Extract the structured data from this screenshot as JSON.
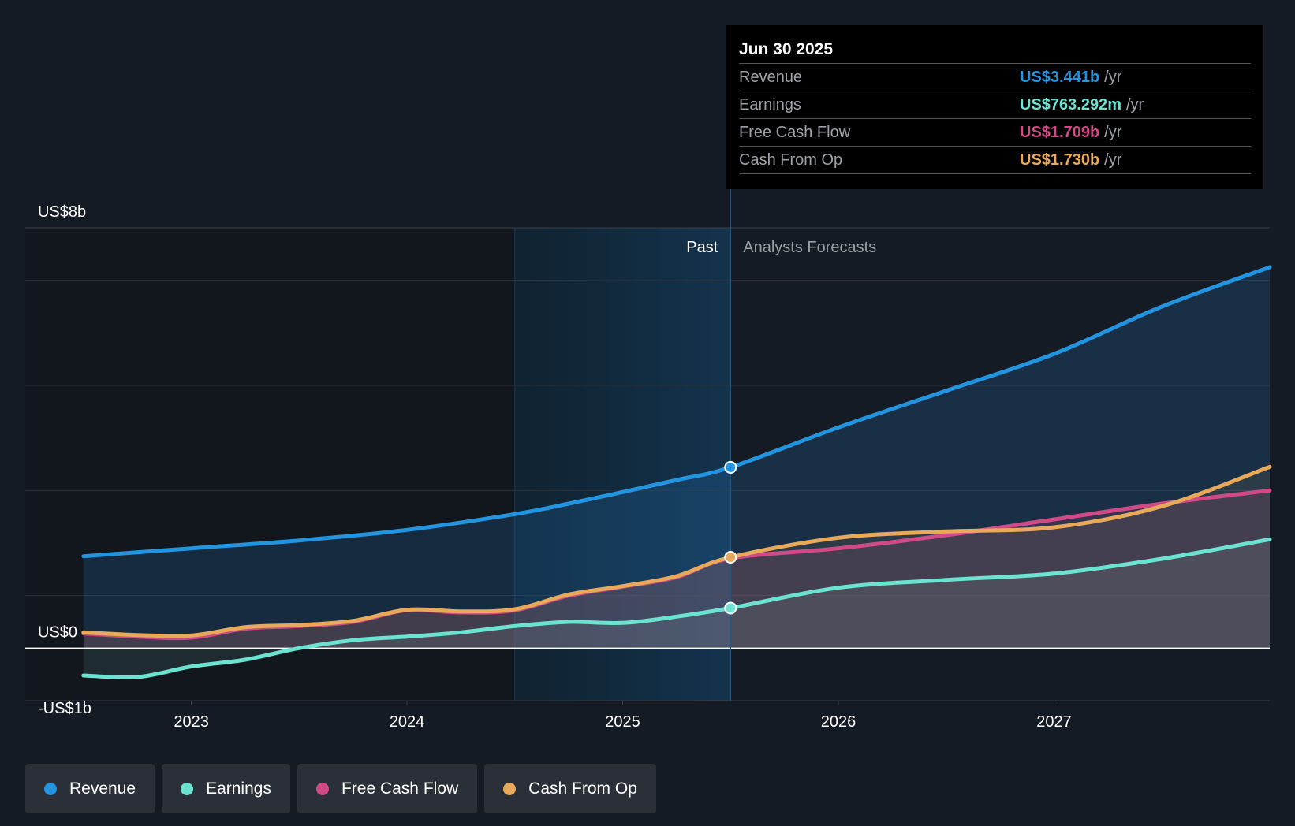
{
  "chart_data": {
    "type": "line",
    "y_unit": "US$ billions",
    "ylim": [
      -1,
      8
    ],
    "y_ticks": [
      {
        "value": 8,
        "label": "US$8b"
      },
      {
        "value": 0,
        "label": "US$0"
      },
      {
        "value": -1,
        "label": "-US$1b"
      }
    ],
    "x_ticks": [
      {
        "value": 2023.0,
        "label": "2023"
      },
      {
        "value": 2024.0,
        "label": "2024"
      },
      {
        "value": 2025.0,
        "label": "2025"
      },
      {
        "value": 2026.0,
        "label": "2026"
      },
      {
        "value": 2027.0,
        "label": "2027"
      }
    ],
    "xlim": [
      2022.23,
      2028.0
    ],
    "past_label": "Past",
    "forecast_label": "Analysts Forecasts",
    "divider_x": 2025.5,
    "highlight_start_x": 2024.5,
    "series": [
      {
        "name": "Revenue",
        "color": "#2394df",
        "points": [
          [
            2022.5,
            1.75
          ],
          [
            2023.0,
            1.9
          ],
          [
            2023.5,
            2.05
          ],
          [
            2024.0,
            2.25
          ],
          [
            2024.5,
            2.55
          ],
          [
            2024.75,
            2.75
          ],
          [
            2025.0,
            2.97
          ],
          [
            2025.25,
            3.2
          ],
          [
            2025.5,
            3.441
          ],
          [
            2026.0,
            4.2
          ],
          [
            2026.5,
            4.9
          ],
          [
            2027.0,
            5.6
          ],
          [
            2027.5,
            6.5
          ],
          [
            2028.0,
            7.25
          ]
        ]
      },
      {
        "name": "Earnings",
        "color": "#6ce2d1",
        "points": [
          [
            2022.5,
            -0.52
          ],
          [
            2022.75,
            -0.55
          ],
          [
            2023.0,
            -0.35
          ],
          [
            2023.25,
            -0.22
          ],
          [
            2023.5,
            0.0
          ],
          [
            2023.75,
            0.15
          ],
          [
            2024.0,
            0.22
          ],
          [
            2024.25,
            0.3
          ],
          [
            2024.5,
            0.42
          ],
          [
            2024.75,
            0.5
          ],
          [
            2025.0,
            0.48
          ],
          [
            2025.25,
            0.6
          ],
          [
            2025.5,
            0.763
          ],
          [
            2026.0,
            1.15
          ],
          [
            2026.5,
            1.3
          ],
          [
            2027.0,
            1.42
          ],
          [
            2027.5,
            1.7
          ],
          [
            2028.0,
            2.07
          ]
        ]
      },
      {
        "name": "Free Cash Flow",
        "color": "#d04a87",
        "points": [
          [
            2022.5,
            0.28
          ],
          [
            2022.75,
            0.22
          ],
          [
            2023.0,
            0.2
          ],
          [
            2023.25,
            0.37
          ],
          [
            2023.5,
            0.42
          ],
          [
            2023.75,
            0.5
          ],
          [
            2024.0,
            0.72
          ],
          [
            2024.25,
            0.68
          ],
          [
            2024.5,
            0.72
          ],
          [
            2024.75,
            1.0
          ],
          [
            2025.0,
            1.17
          ],
          [
            2025.25,
            1.35
          ],
          [
            2025.5,
            1.709
          ],
          [
            2026.0,
            1.9
          ],
          [
            2026.5,
            2.15
          ],
          [
            2027.0,
            2.45
          ],
          [
            2027.5,
            2.75
          ],
          [
            2028.0,
            3.0
          ]
        ]
      },
      {
        "name": "Cash From Op",
        "color": "#e9a95a",
        "points": [
          [
            2022.5,
            0.3
          ],
          [
            2022.75,
            0.25
          ],
          [
            2023.0,
            0.24
          ],
          [
            2023.25,
            0.4
          ],
          [
            2023.5,
            0.44
          ],
          [
            2023.75,
            0.52
          ],
          [
            2024.0,
            0.73
          ],
          [
            2024.25,
            0.7
          ],
          [
            2024.5,
            0.74
          ],
          [
            2024.75,
            1.02
          ],
          [
            2025.0,
            1.18
          ],
          [
            2025.25,
            1.37
          ],
          [
            2025.5,
            1.73
          ],
          [
            2026.0,
            2.1
          ],
          [
            2026.5,
            2.22
          ],
          [
            2027.0,
            2.3
          ],
          [
            2027.5,
            2.7
          ],
          [
            2028.0,
            3.45
          ]
        ]
      }
    ],
    "tooltip": {
      "date": "Jun 30 2025",
      "rows": [
        {
          "label": "Revenue",
          "value": "US$3.441b",
          "unit": "/yr",
          "color": "#2394df"
        },
        {
          "label": "Earnings",
          "value": "US$763.292m",
          "unit": "/yr",
          "color": "#6ce2d1"
        },
        {
          "label": "Free Cash Flow",
          "value": "US$1.709b",
          "unit": "/yr",
          "color": "#d04a87"
        },
        {
          "label": "Cash From Op",
          "value": "US$1.730b",
          "unit": "/yr",
          "color": "#e9a95a"
        }
      ]
    }
  },
  "legend": [
    {
      "label": "Revenue",
      "color": "#2394df"
    },
    {
      "label": "Earnings",
      "color": "#6ce2d1"
    },
    {
      "label": "Free Cash Flow",
      "color": "#d04a87"
    },
    {
      "label": "Cash From Op",
      "color": "#e9a95a"
    }
  ]
}
